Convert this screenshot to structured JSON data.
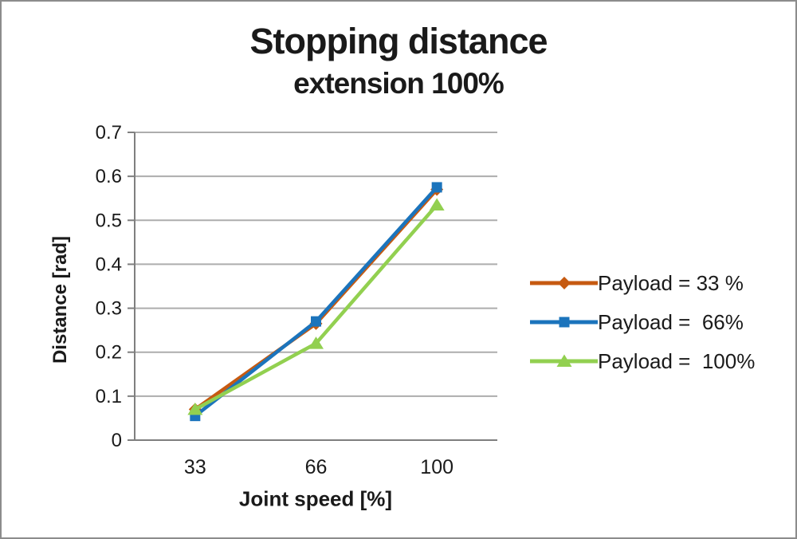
{
  "chart_data": {
    "type": "line",
    "title": "Stopping distance",
    "subtitle": "extension 100%",
    "xlabel": "Joint speed [%]",
    "ylabel": "Distance [rad]",
    "categories": [
      "33",
      "66",
      "100"
    ],
    "x_values": [
      33,
      66,
      100
    ],
    "ylim": [
      0,
      0.7
    ],
    "ytick_step": 0.1,
    "y_tick_labels": [
      "0",
      "0.1",
      "0.2",
      "0.3",
      "0.4",
      "0.5",
      "0.6",
      "0.7"
    ],
    "grid": true,
    "legend_position": "right",
    "colors": {
      "gridline": "#ADADAD",
      "axis": "#7F7F7F",
      "text": "#1A1A1A",
      "background": "#FFFFFF"
    },
    "series": [
      {
        "name": "Payload = 33 %",
        "id": "payload-33",
        "color": "#C65A11",
        "marker": "diamond",
        "values": [
          0.07,
          0.265,
          0.57
        ]
      },
      {
        "name": "Payload =  66%",
        "id": "payload-66",
        "color": "#1B74BC",
        "marker": "square",
        "values": [
          0.055,
          0.27,
          0.575
        ]
      },
      {
        "name": "Payload =  100%",
        "id": "payload-100",
        "color": "#92D050",
        "marker": "triangle",
        "values": [
          0.07,
          0.22,
          0.535
        ]
      }
    ]
  }
}
